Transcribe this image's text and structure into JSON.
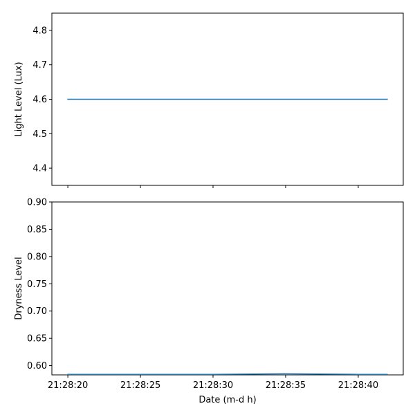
{
  "chart_data": [
    {
      "type": "line",
      "xlabel": "",
      "ylabel": "Light Level (Lux)",
      "x": [
        "21:28:20",
        "21:28:42"
      ],
      "x_seconds": [
        20,
        42
      ],
      "xlim_seconds": [
        18.9,
        43.1
      ],
      "xticks": [
        "21:28:20",
        "21:28:25",
        "21:28:30",
        "21:28:35",
        "21:28:40"
      ],
      "xticks_seconds": [
        20,
        25,
        30,
        35,
        40
      ],
      "show_xtick_labels": false,
      "ylim": [
        4.35,
        4.85
      ],
      "yticks": [
        4.4,
        4.5,
        4.6,
        4.7,
        4.8
      ],
      "ytick_labels": [
        "4.4",
        "4.5",
        "4.6",
        "4.7",
        "4.8"
      ],
      "series": [
        {
          "values": [
            4.6,
            4.6
          ],
          "color": "#1f77b4"
        }
      ],
      "grid": false
    },
    {
      "type": "line",
      "xlabel": "Date (m-d h)",
      "ylabel": "Dryness Level",
      "x_seconds": [
        20,
        25,
        30,
        35,
        40,
        42
      ],
      "xlim_seconds": [
        18.9,
        43.1
      ],
      "xticks": [
        "21:28:20",
        "21:28:25",
        "21:28:30",
        "21:28:35",
        "21:28:40"
      ],
      "xticks_seconds": [
        20,
        25,
        30,
        35,
        40
      ],
      "show_xtick_labels": true,
      "ylim": [
        0.583,
        0.9
      ],
      "yticks": [
        0.6,
        0.65,
        0.7,
        0.75,
        0.8,
        0.85,
        0.9
      ],
      "ytick_labels": [
        "0.60",
        "0.65",
        "0.70",
        "0.75",
        "0.80",
        "0.85",
        "0.90"
      ],
      "series": [
        {
          "values": [
            0.584,
            0.584,
            0.584,
            0.585,
            0.584,
            0.584
          ],
          "color": "#1f77b4"
        }
      ],
      "grid": false
    }
  ]
}
